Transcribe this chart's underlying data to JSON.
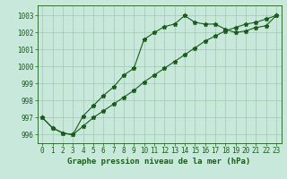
{
  "title": "",
  "xlabel": "Graphe pression niveau de la mer (hPa)",
  "ylabel": "",
  "bg_color": "#c8e8dc",
  "line_color": "#1a5c1a",
  "grid_color": "#a0c8b0",
  "ylim": [
    995.5,
    1003.6
  ],
  "xlim": [
    -0.5,
    23.5
  ],
  "yticks": [
    996,
    997,
    998,
    999,
    1000,
    1001,
    1002,
    1003
  ],
  "xticks": [
    0,
    1,
    2,
    3,
    4,
    5,
    6,
    7,
    8,
    9,
    10,
    11,
    12,
    13,
    14,
    15,
    16,
    17,
    18,
    19,
    20,
    21,
    22,
    23
  ],
  "line1_x": [
    0,
    1,
    2,
    3,
    4,
    5,
    6,
    7,
    8,
    9,
    10,
    11,
    12,
    13,
    14,
    15,
    16,
    17,
    18,
    19,
    20,
    21,
    22,
    23
  ],
  "line1_y": [
    997.0,
    996.4,
    996.1,
    996.0,
    997.1,
    997.7,
    998.3,
    998.8,
    999.5,
    999.9,
    1001.6,
    1002.0,
    1002.35,
    1002.5,
    1003.0,
    1002.6,
    1002.5,
    1002.5,
    1002.2,
    1002.0,
    1002.1,
    1002.3,
    1002.4,
    1003.0
  ],
  "line2_x": [
    0,
    1,
    2,
    3,
    4,
    5,
    6,
    7,
    8,
    9,
    10,
    11,
    12,
    13,
    14,
    15,
    16,
    17,
    18,
    19,
    20,
    21,
    22,
    23
  ],
  "line2_y": [
    997.0,
    996.4,
    996.1,
    996.0,
    996.5,
    997.0,
    997.4,
    997.8,
    998.2,
    998.6,
    999.1,
    999.5,
    999.9,
    1000.3,
    1000.7,
    1001.1,
    1001.5,
    1001.8,
    1002.1,
    1002.3,
    1002.5,
    1002.6,
    1002.8,
    1003.0
  ],
  "marker": "*",
  "markersize": 3.5,
  "linewidth": 0.8,
  "xlabel_fontsize": 6.5,
  "tick_fontsize": 5.5
}
